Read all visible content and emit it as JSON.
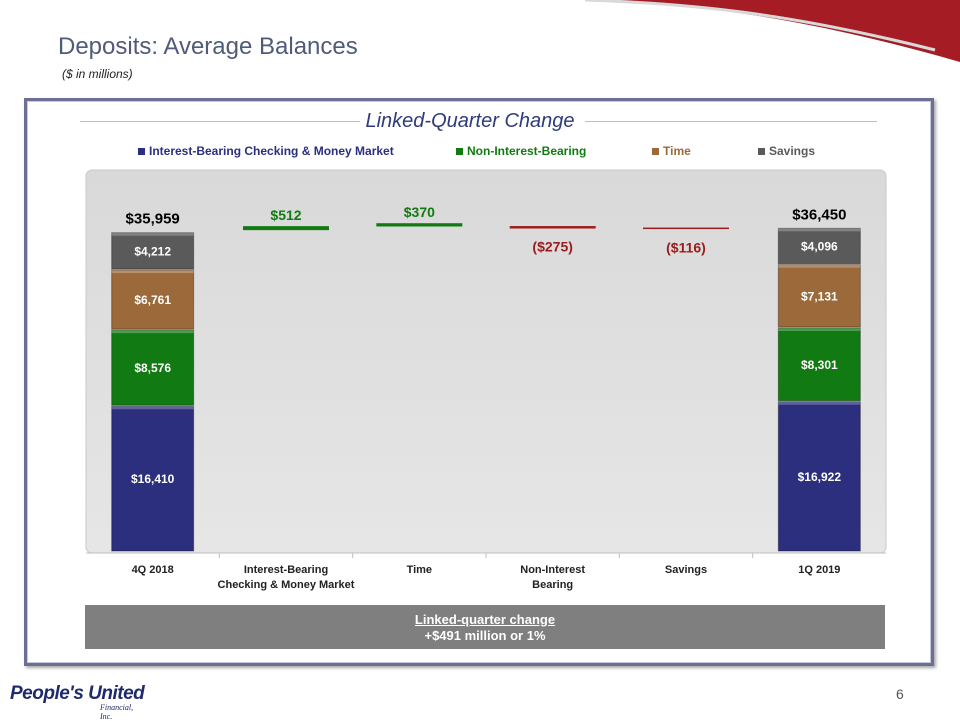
{
  "header": {
    "title": "Deposits: Average Balances",
    "subtitle": "($ in millions)"
  },
  "panel": {
    "title": "Linked-Quarter Change"
  },
  "legend": [
    {
      "name": "Interest-Bearing Checking & Money Market",
      "color": "#2b2f7e"
    },
    {
      "name": "Non-Interest-Bearing",
      "color": "#127a12"
    },
    {
      "name": "Time",
      "color": "#9c6a3a"
    },
    {
      "name": "Savings",
      "color": "#5a5a5a"
    }
  ],
  "chart_data": {
    "type": "bar",
    "subtype": "waterfall",
    "categories": [
      "4Q 2018",
      "Interest-Bearing\nChecking & Money Market",
      "Time",
      "Non-Interest\nBearing",
      "Savings",
      "1Q 2019"
    ],
    "series": [
      {
        "name": "Interest-Bearing Checking & Money Market",
        "values": [
          16410,
          null,
          null,
          null,
          null,
          16922
        ],
        "labels": [
          "$16,410",
          "$16,922"
        ],
        "color": "#2b2f7e"
      },
      {
        "name": "Non-Interest-Bearing",
        "values": [
          8576,
          null,
          null,
          null,
          null,
          8301
        ],
        "labels": [
          "$8,576",
          "$8,301"
        ],
        "color": "#127a12"
      },
      {
        "name": "Time",
        "values": [
          6761,
          null,
          null,
          null,
          null,
          7131
        ],
        "labels": [
          "$6,761",
          "$7,131"
        ],
        "color": "#9c6a3a"
      },
      {
        "name": "Savings",
        "values": [
          4212,
          null,
          null,
          null,
          null,
          4096
        ],
        "labels": [
          "$4,212",
          "$4,096"
        ],
        "color": "#5a5a5a"
      }
    ],
    "totals": [
      {
        "category": "4Q 2018",
        "value": 35959,
        "label": "$35,959"
      },
      {
        "category": "1Q 2019",
        "value": 36450,
        "label": "$36,450"
      }
    ],
    "changes": [
      {
        "category": "Interest-Bearing\nChecking & Money Market",
        "value": 512,
        "label": "$512",
        "color": "#127a12"
      },
      {
        "category": "Time",
        "value": 370,
        "label": "$370",
        "color": "#127a12"
      },
      {
        "category": "Non-Interest\nBearing",
        "value": -275,
        "label": "($275)",
        "color": "#9b1c1c"
      },
      {
        "category": "Savings",
        "value": -116,
        "label": "($116)",
        "color": "#9b1c1c"
      }
    ],
    "ylim": [
      0,
      37500
    ]
  },
  "summary": {
    "line1": "Linked-quarter change",
    "line2": "+$491 million or  1%"
  },
  "footer": {
    "page_number": "6",
    "logo_name": "People's United",
    "logo_sub": "Financial, Inc."
  }
}
